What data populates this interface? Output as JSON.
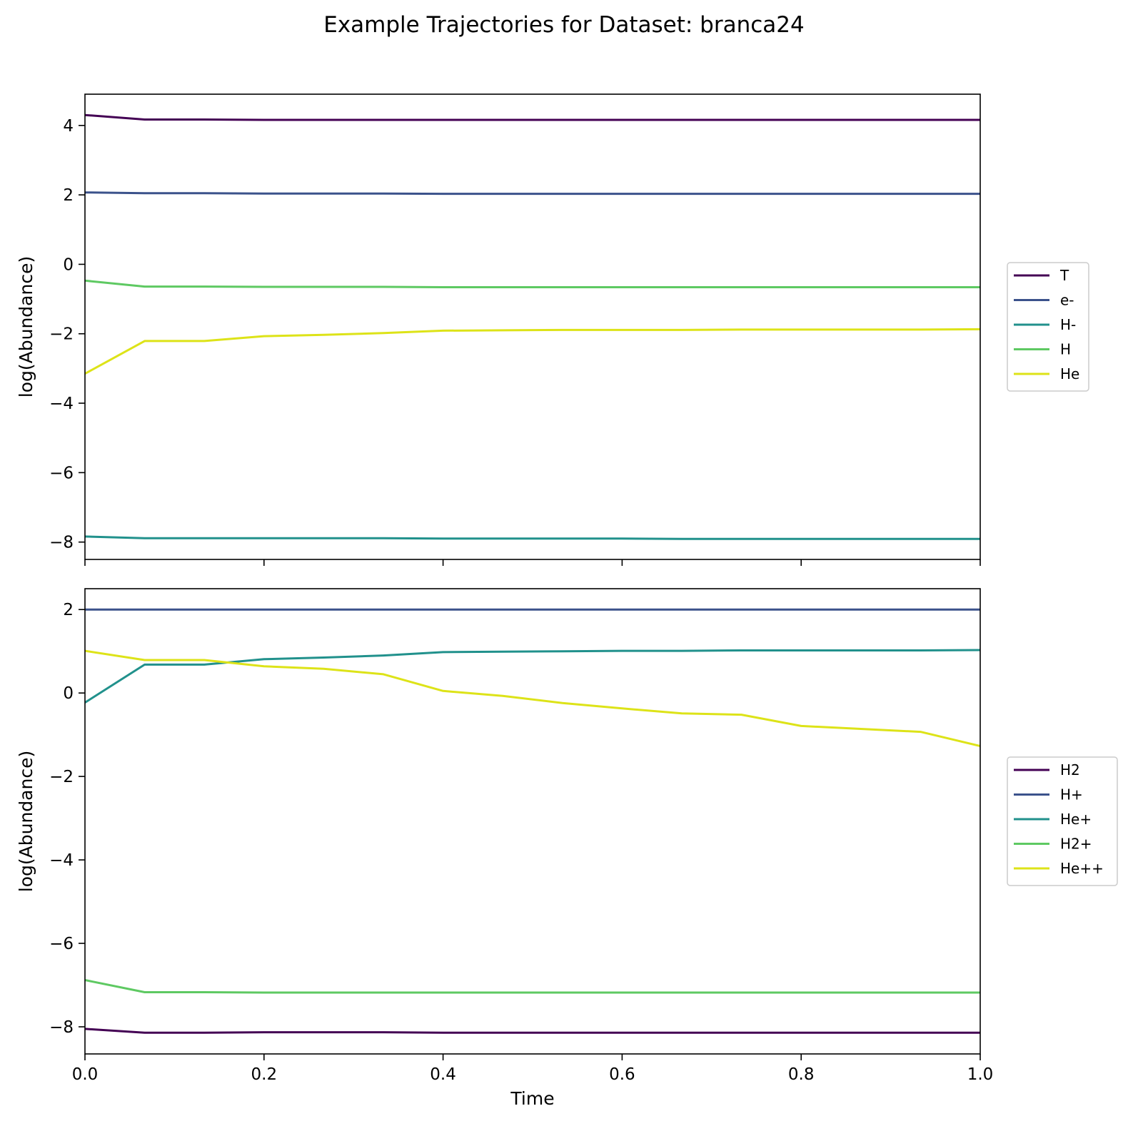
{
  "title": "Example Trajectories for Dataset: branca24",
  "chart_data": [
    {
      "type": "line",
      "xlabel": "",
      "ylabel": "log(Abundance)",
      "xlim": [
        0.0,
        1.0
      ],
      "ylim": [
        -8.5,
        4.9
      ],
      "xticks": [
        0.0,
        0.2,
        0.4,
        0.6,
        0.8,
        1.0
      ],
      "xticklabels_visible": false,
      "yticks": [
        -8,
        -6,
        -4,
        -2,
        0,
        2,
        4
      ],
      "yticklabels": [
        "−8",
        "−6",
        "−4",
        "−2",
        "0",
        "2",
        "4"
      ],
      "legend_position": "right",
      "x": [
        0.0,
        0.0667,
        0.1333,
        0.2,
        0.2667,
        0.3333,
        0.4,
        0.4667,
        0.5333,
        0.6,
        0.6667,
        0.7333,
        0.8,
        0.8667,
        0.9333,
        1.0
      ],
      "series": [
        {
          "name": "T",
          "color": "#440154",
          "values": [
            4.3,
            4.17,
            4.17,
            4.16,
            4.16,
            4.16,
            4.16,
            4.16,
            4.16,
            4.16,
            4.16,
            4.16,
            4.16,
            4.16,
            4.16,
            4.16
          ]
        },
        {
          "name": "e-",
          "color": "#3b528b",
          "values": [
            2.07,
            2.05,
            2.05,
            2.04,
            2.04,
            2.04,
            2.03,
            2.03,
            2.03,
            2.03,
            2.03,
            2.03,
            2.03,
            2.03,
            2.03,
            2.03
          ]
        },
        {
          "name": "H-",
          "color": "#21918c",
          "values": [
            -7.84,
            -7.89,
            -7.89,
            -7.89,
            -7.89,
            -7.89,
            -7.9,
            -7.9,
            -7.9,
            -7.9,
            -7.91,
            -7.91,
            -7.91,
            -7.91,
            -7.91,
            -7.91
          ]
        },
        {
          "name": "H",
          "color": "#5ec962",
          "values": [
            -0.47,
            -0.64,
            -0.64,
            -0.65,
            -0.65,
            -0.65,
            -0.66,
            -0.66,
            -0.66,
            -0.66,
            -0.66,
            -0.66,
            -0.66,
            -0.66,
            -0.66,
            -0.66
          ]
        },
        {
          "name": "He",
          "color": "#dde318",
          "values": [
            -3.15,
            -2.21,
            -2.21,
            -2.07,
            -2.03,
            -1.98,
            -1.91,
            -1.9,
            -1.89,
            -1.89,
            -1.89,
            -1.88,
            -1.88,
            -1.88,
            -1.88,
            -1.87
          ]
        }
      ]
    },
    {
      "type": "line",
      "xlabel": "Time",
      "ylabel": "log(Abundance)",
      "xlim": [
        0.0,
        1.0
      ],
      "ylim": [
        -8.65,
        2.5
      ],
      "xticks": [
        0.0,
        0.2,
        0.4,
        0.6,
        0.8,
        1.0
      ],
      "xticklabels": [
        "0.0",
        "0.2",
        "0.4",
        "0.6",
        "0.8",
        "1.0"
      ],
      "yticks": [
        -8,
        -6,
        -4,
        -2,
        0,
        2
      ],
      "yticklabels": [
        "−8",
        "−6",
        "−4",
        "−2",
        "0",
        "2"
      ],
      "legend_position": "right",
      "x": [
        0.0,
        0.0667,
        0.1333,
        0.2,
        0.2667,
        0.3333,
        0.4,
        0.4667,
        0.5333,
        0.6,
        0.6667,
        0.7333,
        0.8,
        0.8667,
        0.9333,
        1.0
      ],
      "series": [
        {
          "name": "H2",
          "color": "#440154",
          "values": [
            -8.05,
            -8.14,
            -8.14,
            -8.13,
            -8.13,
            -8.13,
            -8.14,
            -8.14,
            -8.14,
            -8.14,
            -8.14,
            -8.14,
            -8.14,
            -8.14,
            -8.14,
            -8.14
          ]
        },
        {
          "name": "H+",
          "color": "#3b528b",
          "values": [
            2.0,
            2.0,
            2.0,
            2.0,
            2.0,
            2.0,
            2.0,
            2.0,
            2.0,
            2.0,
            2.0,
            2.0,
            2.0,
            2.0,
            2.0,
            2.0
          ]
        },
        {
          "name": "He+",
          "color": "#21918c",
          "values": [
            -0.23,
            0.68,
            0.68,
            0.81,
            0.85,
            0.9,
            0.98,
            0.99,
            1.0,
            1.01,
            1.01,
            1.02,
            1.02,
            1.02,
            1.02,
            1.03
          ]
        },
        {
          "name": "H2+",
          "color": "#5ec962",
          "values": [
            -6.88,
            -7.17,
            -7.17,
            -7.18,
            -7.18,
            -7.18,
            -7.18,
            -7.18,
            -7.18,
            -7.18,
            -7.18,
            -7.18,
            -7.18,
            -7.18,
            -7.18,
            -7.18
          ]
        },
        {
          "name": "He++",
          "color": "#dde318",
          "values": [
            1.01,
            0.79,
            0.79,
            0.64,
            0.58,
            0.45,
            0.05,
            -0.07,
            -0.24,
            -0.37,
            -0.49,
            -0.52,
            -0.79,
            -0.86,
            -0.93,
            -1.27
          ]
        }
      ]
    }
  ]
}
